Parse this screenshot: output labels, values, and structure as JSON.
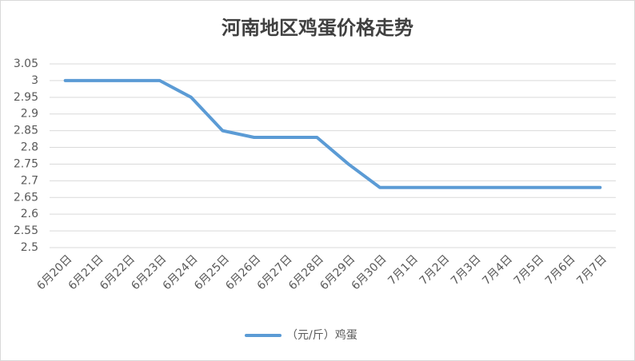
{
  "chart_data": {
    "type": "line",
    "title": "河南地区鸡蛋价格走势",
    "categories": [
      "6月20日",
      "6月21日",
      "6月22日",
      "6月23日",
      "6月24日",
      "6月25日",
      "6月26日",
      "6月27日",
      "6月28日",
      "6月29日",
      "6月30日",
      "7月1日",
      "7月2日",
      "7月3日",
      "7月4日",
      "7月5日",
      "7月6日",
      "7月7日"
    ],
    "series": [
      {
        "name": "（元/斤）鸡蛋",
        "color": "#5b9bd5",
        "values": [
          3,
          3,
          3,
          3,
          2.95,
          2.85,
          2.83,
          2.83,
          2.83,
          2.75,
          2.68,
          2.68,
          2.68,
          2.68,
          2.68,
          2.68,
          2.68,
          2.68
        ]
      }
    ],
    "ylim": [
      2.5,
      3.05
    ],
    "yticks": [
      2.5,
      2.55,
      2.6,
      2.65,
      2.7,
      2.75,
      2.8,
      2.85,
      2.9,
      2.95,
      3,
      3.05
    ],
    "grid": true,
    "legend": "bottom"
  }
}
